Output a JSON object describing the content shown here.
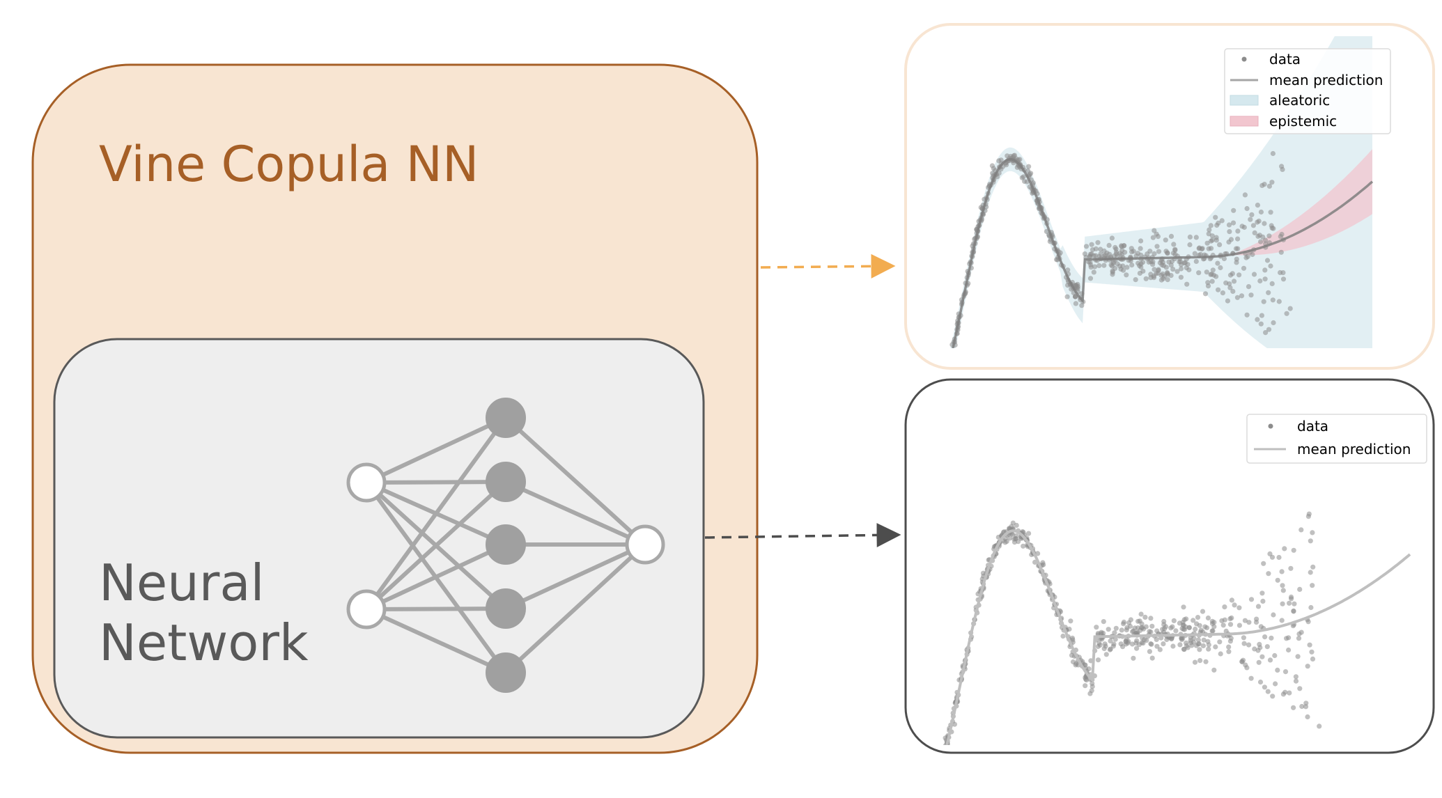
{
  "vine_copula_nn": {
    "label": "Vine Copula NN",
    "fill": "#f8e5d2",
    "border": "#a65f26"
  },
  "neural_network": {
    "label_line1": "Neural",
    "label_line2": "Network",
    "fill": "#eeeeee",
    "border": "#595959",
    "layers": [
      2,
      5,
      1
    ]
  },
  "arrows": {
    "vine_to_top": "#f2ac50",
    "nn_to_bottom": "#4d4d4d"
  },
  "top_plot": {
    "legend": {
      "data": "data",
      "mean": "mean prediction",
      "aleatoric": "aleatoric",
      "epistemic": "epistemic"
    },
    "colors": {
      "points": "#8c8c8c",
      "mean": "#8c8c8c",
      "aleatoric": "#d5e8ee",
      "epistemic": "#f2c6cf",
      "border": "#f8e5d2"
    }
  },
  "bottom_plot": {
    "legend": {
      "data": "data",
      "mean": "mean prediction"
    },
    "colors": {
      "points": "#8c8c8c",
      "mean": "#bfbfbf",
      "border": "#4d4d4d"
    }
  }
}
